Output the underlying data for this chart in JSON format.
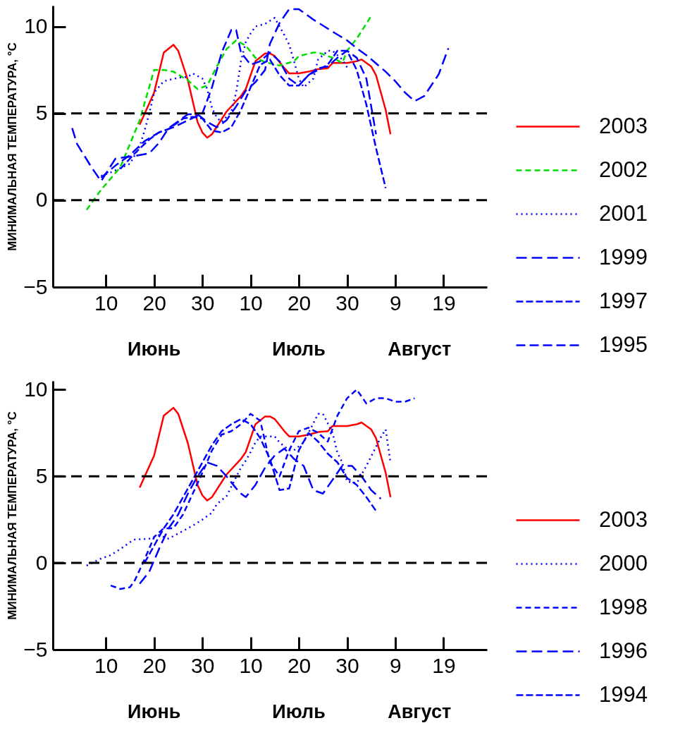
{
  "chart_data": [
    {
      "type": "line",
      "ylabel": "МИНИМАЛЬНАЯ ТЕМПЕРАТУРА, °C",
      "xlim": [
        "--05-30",
        "--08-28"
      ],
      "xticks": [
        {
          "value": "--06-10",
          "label": "10"
        },
        {
          "value": "--06-20",
          "label": "20"
        },
        {
          "value": "--06-30",
          "label": "30"
        },
        {
          "value": "--07-10",
          "label": "10"
        },
        {
          "value": "--07-20",
          "label": "20"
        },
        {
          "value": "--07-30",
          "label": "30"
        },
        {
          "value": "--08-09",
          "label": "9"
        },
        {
          "value": "--08-19",
          "label": "19"
        }
      ],
      "annotations": [
        "Июнь",
        "Июль",
        "Август"
      ],
      "ylim": [
        -5,
        11.2
      ],
      "yticks": [
        -5,
        0,
        5,
        10
      ],
      "legend": "right",
      "marker": "none",
      "ref_lines": [
        {
          "axis": "y",
          "value": 5,
          "color": "#000000",
          "line_style": "dashed"
        },
        {
          "axis": "y",
          "value": 0,
          "color": "#000000",
          "line_style": "dashed"
        }
      ],
      "series": [
        {
          "name": "2003",
          "color": "#ff0000",
          "line_style": "solid",
          "x": [
            "--06-17",
            "--06-20",
            "--06-22",
            "--06-24",
            "--06-25",
            "--06-27",
            "--06-29",
            "--06-30",
            "--07-01",
            "--07-02",
            "--07-05",
            "--07-08",
            "--07-09",
            "--07-11",
            "--07-13",
            "--07-14",
            "--07-15",
            "--07-17",
            "--07-18",
            "--07-20",
            "--07-22",
            "--07-24",
            "--07-26",
            "--07-27",
            "--07-30",
            "--08-01",
            "--08-02",
            "--08-04",
            "--08-05",
            "--08-07",
            "--08-08"
          ],
          "values": [
            4.35,
            6.2,
            8.5,
            8.95,
            8.6,
            6.9,
            4.5,
            3.9,
            3.6,
            3.8,
            5.1,
            6.0,
            6.4,
            8.0,
            8.45,
            8.45,
            8.3,
            7.6,
            7.3,
            7.3,
            7.4,
            7.55,
            7.6,
            7.9,
            7.9,
            8.0,
            8.1,
            7.7,
            7.2,
            5.2,
            3.8
          ]
        },
        {
          "name": "2002",
          "color": "#00dd00",
          "line_style": "dashed",
          "x": [
            "--06-06",
            "--06-09",
            "--06-13",
            "--06-17",
            "--06-20",
            "--06-22",
            "--06-24",
            "--06-27",
            "--06-29",
            "--07-01",
            "--07-03",
            "--07-05",
            "--07-07",
            "--07-09",
            "--07-11",
            "--07-13",
            "--07-16",
            "--07-19",
            "--07-20",
            "--07-23",
            "--07-24",
            "--07-27",
            "--07-29",
            "--07-30",
            "--08-01",
            "--08-04"
          ],
          "values": [
            -0.55,
            0.6,
            1.9,
            4.6,
            7.5,
            7.5,
            7.4,
            6.9,
            6.4,
            6.6,
            7.7,
            8.7,
            9.2,
            8.9,
            8.2,
            7.95,
            7.75,
            8.0,
            8.3,
            8.5,
            8.5,
            8.2,
            7.9,
            8.6,
            9.3,
            10.6
          ]
        },
        {
          "name": "2001",
          "color": "#0000ff",
          "line_style": "dotted",
          "x": [
            "--06-09",
            "--06-11",
            "--06-15",
            "--06-17",
            "--06-18",
            "--06-19",
            "--06-20",
            "--06-22",
            "--06-25",
            "--06-27",
            "--06-28",
            "--06-30",
            "--07-01",
            "--07-02",
            "--07-03",
            "--07-04",
            "--07-06",
            "--07-07",
            "--07-08",
            "--07-09",
            "--07-10",
            "--07-11",
            "--07-13",
            "--07-15",
            "--07-16",
            "--07-17",
            "--07-18",
            "--07-19",
            "--07-20",
            "--07-21",
            "--07-23",
            "--07-24",
            "--07-26",
            "--07-27",
            "--07-29",
            "--07-30"
          ],
          "values": [
            1.4,
            1.6,
            2.1,
            3.1,
            4.0,
            5.0,
            6.2,
            6.85,
            7.05,
            7.1,
            7.3,
            7.0,
            6.4,
            5.3,
            4.75,
            4.5,
            5.1,
            6.2,
            8.0,
            9.1,
            9.6,
            10.0,
            10.15,
            10.5,
            10.0,
            9.5,
            8.95,
            8.0,
            7.0,
            6.5,
            7.0,
            8.1,
            8.6,
            8.6,
            8.1,
            7.65
          ]
        },
        {
          "name": "1999",
          "color": "#0000ff",
          "line_style": "dashed",
          "x": [
            "--06-03",
            "--06-04",
            "--06-07",
            "--06-09",
            "--06-12",
            "--06-16",
            "--06-19",
            "--06-21",
            "--06-23",
            "--06-27",
            "--06-29",
            "--07-01",
            "--07-03",
            "--07-05",
            "--07-07",
            "--07-09",
            "--07-11",
            "--07-13",
            "--07-14",
            "--07-16",
            "--07-18",
            "--07-20",
            "--07-23",
            "--07-27",
            "--07-30",
            "--08-01",
            "--08-03",
            "--08-07",
            "--08-09",
            "--08-11",
            "--08-13",
            "--08-15",
            "--08-18",
            "--08-20"
          ],
          "values": [
            4.15,
            3.25,
            1.9,
            1.1,
            2.4,
            2.55,
            2.7,
            3.3,
            4.15,
            4.95,
            4.95,
            4.5,
            4.2,
            4.6,
            5.4,
            6.3,
            6.8,
            7.5,
            9.0,
            10.2,
            11.0,
            11.0,
            10.4,
            9.7,
            9.2,
            8.75,
            8.35,
            7.4,
            6.85,
            6.2,
            5.7,
            6.0,
            7.25,
            8.75
          ]
        },
        {
          "name": "1997",
          "color": "#0000ff",
          "line_style": "dashed",
          "x": [
            "--06-13",
            "--06-16",
            "--06-19",
            "--06-21",
            "--06-23",
            "--06-26",
            "--06-28",
            "--06-30",
            "--07-02",
            "--07-04",
            "--07-06",
            "--07-08",
            "--07-10",
            "--07-12",
            "--07-14",
            "--07-16",
            "--07-18",
            "--07-20",
            "--07-22",
            "--07-24",
            "--07-26",
            "--07-28",
            "--07-30",
            "--08-01",
            "--08-03",
            "--08-05",
            "--08-07"
          ],
          "values": [
            1.8,
            2.7,
            3.5,
            3.9,
            4.1,
            4.7,
            4.8,
            4.7,
            4.0,
            3.9,
            4.2,
            5.2,
            6.5,
            7.8,
            8.1,
            7.2,
            6.6,
            6.6,
            7.2,
            7.5,
            7.8,
            8.6,
            8.6,
            7.5,
            5.5,
            3.0,
            0.7
          ]
        },
        {
          "name": "1995",
          "color": "#0000ff",
          "line_style": "dashed",
          "x": [
            "--06-09",
            "--06-12",
            "--06-15",
            "--06-18",
            "--06-21",
            "--06-24",
            "--06-27",
            "--06-30",
            "--07-02",
            "--07-04",
            "--07-06",
            "--07-07",
            "--07-08",
            "--07-10",
            "--07-12",
            "--07-14",
            "--07-16",
            "--07-18",
            "--07-20",
            "--07-22",
            "--07-24",
            "--07-26",
            "--07-28",
            "--07-30",
            "--08-01",
            "--08-03",
            "--08-05"
          ],
          "values": [
            1.3,
            2.0,
            2.6,
            3.4,
            3.9,
            4.2,
            4.6,
            5.0,
            6.5,
            8.5,
            9.8,
            9.8,
            8.5,
            7.8,
            8.0,
            8.5,
            8.0,
            7.0,
            6.6,
            7.2,
            7.6,
            7.7,
            8.2,
            8.6,
            8.2,
            7.0,
            3.8
          ]
        }
      ]
    },
    {
      "type": "line",
      "ylabel": "МИНИМАЛЬНАЯ ТЕМПЕРАТУРА, °C",
      "xlim": [
        "--05-30",
        "--08-28"
      ],
      "xticks": [
        {
          "value": "--06-10",
          "label": "10"
        },
        {
          "value": "--06-20",
          "label": "20"
        },
        {
          "value": "--06-30",
          "label": "30"
        },
        {
          "value": "--07-10",
          "label": "10"
        },
        {
          "value": "--07-20",
          "label": "20"
        },
        {
          "value": "--07-30",
          "label": "30"
        },
        {
          "value": "--08-09",
          "label": "9"
        },
        {
          "value": "--08-19",
          "label": "19"
        }
      ],
      "annotations": [
        "Июнь",
        "Июль",
        "Август"
      ],
      "ylim": [
        -5,
        10.5
      ],
      "yticks": [
        -5,
        0,
        5,
        10
      ],
      "legend": "right",
      "marker": "none",
      "ref_lines": [
        {
          "axis": "y",
          "value": 5,
          "color": "#000000",
          "line_style": "dashed"
        },
        {
          "axis": "y",
          "value": 0,
          "color": "#000000",
          "line_style": "dashed"
        }
      ],
      "series": [
        {
          "name": "2003",
          "color": "#ff0000",
          "line_style": "solid",
          "x": [
            "--06-17",
            "--06-20",
            "--06-22",
            "--06-24",
            "--06-25",
            "--06-27",
            "--06-29",
            "--06-30",
            "--07-01",
            "--07-02",
            "--07-05",
            "--07-08",
            "--07-09",
            "--07-11",
            "--07-13",
            "--07-14",
            "--07-15",
            "--07-17",
            "--07-18",
            "--07-20",
            "--07-22",
            "--07-24",
            "--07-26",
            "--07-27",
            "--07-30",
            "--08-01",
            "--08-02",
            "--08-04",
            "--08-05",
            "--08-07",
            "--08-08"
          ],
          "values": [
            4.35,
            6.2,
            8.5,
            8.95,
            8.6,
            6.9,
            4.5,
            3.9,
            3.6,
            3.8,
            5.1,
            6.0,
            6.4,
            8.0,
            8.45,
            8.45,
            8.3,
            7.6,
            7.3,
            7.3,
            7.4,
            7.55,
            7.6,
            7.9,
            7.9,
            8.0,
            8.1,
            7.7,
            7.2,
            5.2,
            3.8
          ]
        },
        {
          "name": "2000",
          "color": "#0000ff",
          "line_style": "dotted",
          "x": [
            "--06-06",
            "--06-09",
            "--06-11",
            "--06-13",
            "--06-15",
            "--06-16",
            "--06-19",
            "--06-21",
            "--06-23",
            "--06-25",
            "--06-28",
            "--06-30",
            "--07-02",
            "--07-03",
            "--07-05",
            "--07-08",
            "--07-09",
            "--07-10",
            "--07-11",
            "--07-12",
            "--07-15",
            "--07-16",
            "--07-18",
            "--07-19",
            "--07-21",
            "--07-23",
            "--07-24",
            "--07-25",
            "--07-26",
            "--07-27",
            "--07-28",
            "--07-29",
            "--07-30",
            "--08-01",
            "--08-02",
            "--08-03",
            "--08-04",
            "--08-06",
            "--08-07",
            "--08-08"
          ],
          "values": [
            -0.15,
            0.25,
            0.45,
            0.8,
            1.2,
            1.35,
            1.4,
            1.6,
            1.4,
            1.7,
            2.15,
            2.5,
            2.9,
            3.4,
            3.85,
            5.5,
            5.9,
            6.4,
            6.95,
            7.3,
            7.3,
            6.95,
            6.5,
            6.5,
            6.95,
            8.05,
            8.6,
            8.6,
            8.05,
            7.5,
            6.35,
            5.8,
            4.7,
            4.6,
            5.1,
            5.6,
            6.15,
            7.25,
            7.7,
            5.8
          ]
        },
        {
          "name": "1998",
          "color": "#0000ff",
          "line_style": "dashed",
          "x": [
            "--06-11",
            "--06-13",
            "--06-15",
            "--06-16",
            "--06-18",
            "--06-20",
            "--06-22",
            "--06-24",
            "--06-26",
            "--06-28",
            "--06-30",
            "--07-02",
            "--07-04",
            "--07-06",
            "--07-08",
            "--07-10",
            "--07-12",
            "--07-13",
            "--07-14",
            "--07-16",
            "--07-18",
            "--07-20",
            "--07-22",
            "--07-24",
            "--07-26",
            "--07-28",
            "--07-30",
            "--08-01",
            "--08-03",
            "--08-05",
            "--08-07",
            "--08-09",
            "--08-11",
            "--08-13"
          ],
          "values": [
            -1.3,
            -1.5,
            -1.4,
            -1.0,
            0.2,
            1.5,
            2.0,
            2.0,
            2.8,
            4.0,
            5.2,
            6.5,
            7.4,
            7.6,
            8.0,
            8.6,
            8.2,
            7.0,
            5.8,
            5.0,
            6.5,
            7.6,
            7.8,
            7.5,
            7.0,
            8.5,
            9.5,
            10.0,
            9.2,
            9.5,
            9.5,
            9.3,
            9.3,
            9.5
          ]
        },
        {
          "name": "1996",
          "color": "#0000ff",
          "line_style": "dashed",
          "x": [
            "--06-17",
            "--06-19",
            "--06-21",
            "--06-23",
            "--06-25",
            "--06-27",
            "--06-29",
            "--07-01",
            "--07-03",
            "--07-05",
            "--07-07",
            "--07-08",
            "--07-09",
            "--07-11",
            "--07-13",
            "--07-15",
            "--07-17",
            "--07-19",
            "--07-21",
            "--07-23",
            "--07-25",
            "--07-27",
            "--07-29",
            "--07-31",
            "--08-02",
            "--08-04",
            "--08-06"
          ],
          "values": [
            -1.2,
            -0.5,
            0.8,
            2.0,
            2.8,
            4.0,
            5.0,
            5.8,
            5.6,
            5.0,
            4.3,
            4.0,
            3.8,
            4.5,
            5.5,
            6.2,
            6.6,
            6.0,
            5.6,
            4.2,
            4.0,
            4.8,
            5.6,
            5.6,
            5.0,
            4.2,
            3.7
          ]
        },
        {
          "name": "1994",
          "color": "#0000ff",
          "line_style": "dashed",
          "x": [
            "--06-18",
            "--06-20",
            "--06-22",
            "--06-24",
            "--06-26",
            "--06-28",
            "--06-30",
            "--07-02",
            "--07-04",
            "--07-06",
            "--07-08",
            "--07-10",
            "--07-12",
            "--07-14",
            "--07-16",
            "--07-18",
            "--07-20",
            "--07-22",
            "--07-24",
            "--07-26",
            "--07-28",
            "--07-30",
            "--08-01",
            "--08-03",
            "--08-05"
          ],
          "values": [
            0.0,
            1.0,
            2.0,
            2.8,
            3.8,
            4.8,
            5.8,
            6.8,
            7.6,
            8.0,
            8.3,
            8.0,
            7.2,
            6.0,
            4.2,
            4.3,
            6.5,
            7.5,
            7.0,
            6.3,
            5.8,
            4.9,
            4.5,
            3.8,
            3.0
          ]
        }
      ]
    }
  ]
}
